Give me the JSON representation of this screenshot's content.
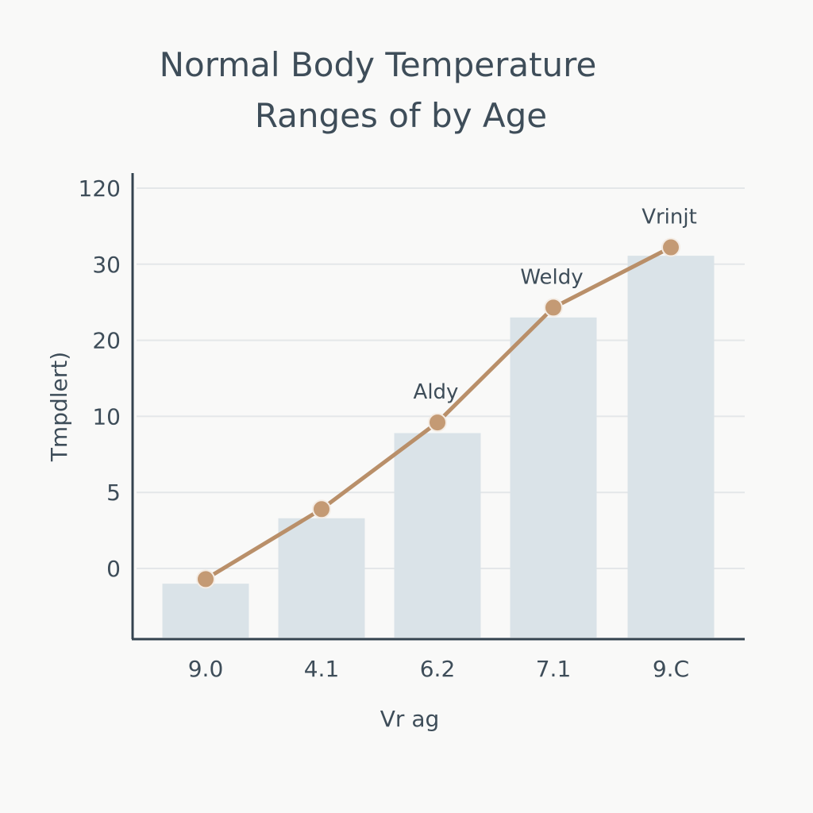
{
  "chart_data": {
    "type": "bar",
    "title_lines": [
      "Normal Body Temperature",
      "Ranges of by Age"
    ],
    "xlabel": "Vr ag",
    "ylabel": "Tmpdlert)",
    "categories": [
      "9.0",
      "4.1",
      "6.2",
      "7.1",
      "9.C"
    ],
    "yticks": [
      0,
      5,
      10,
      20,
      30,
      120
    ],
    "y_scale": "non-uniform (evenly spaced tick labels)",
    "grid": true,
    "series": [
      {
        "type": "bar",
        "values": [
          -1,
          3.3,
          8.9,
          23,
          40
        ],
        "color": "#dae3e8"
      },
      {
        "type": "line",
        "values": [
          -0.7,
          3.9,
          9.6,
          24.3,
          50
        ],
        "color": "#b98f69"
      }
    ],
    "annotations": [
      {
        "text": "Aldy",
        "index": 2
      },
      {
        "text": "Weldy",
        "index": 3
      },
      {
        "text": "Vrinjt",
        "index": 4
      }
    ]
  }
}
